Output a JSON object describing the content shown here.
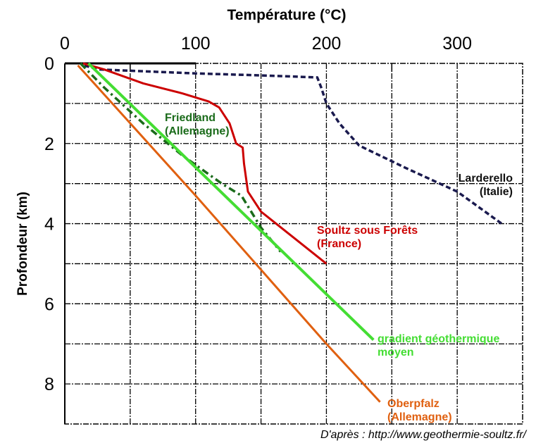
{
  "chart_data": {
    "type": "line",
    "title": "Température (°C)",
    "xlabel": "Température (°C)",
    "ylabel": "Profondeur (km)",
    "xlim": [
      0,
      350
    ],
    "ylim": [
      0,
      9
    ],
    "y_inverted": true,
    "x_axis_position": "top",
    "x_ticks": [
      0,
      100,
      200,
      300
    ],
    "x_tick_labels": [
      "0",
      "100",
      "200",
      "300"
    ],
    "y_ticks": [
      0,
      2,
      4,
      6,
      8
    ],
    "y_tick_labels": [
      "0",
      "2",
      "4",
      "6",
      "8"
    ],
    "x_grid": [
      50,
      100,
      150,
      200,
      250,
      300
    ],
    "y_grid": [
      1,
      2,
      3,
      4,
      5,
      6,
      7,
      8
    ],
    "grid": true,
    "series": [
      {
        "name": "Larderello (Italie)",
        "label_lines": [
          "Larderello",
          "(Italie)"
        ],
        "color": "#1a1a4e",
        "style": "dashed",
        "points": [
          [
            15,
            0.05
          ],
          [
            25,
            0.15
          ],
          [
            100,
            0.25
          ],
          [
            150,
            0.3
          ],
          [
            193,
            0.35
          ],
          [
            196,
            0.6
          ],
          [
            200,
            1.0
          ],
          [
            210,
            1.5
          ],
          [
            225,
            2.05
          ],
          [
            260,
            2.6
          ],
          [
            300,
            3.2
          ],
          [
            334,
            4.0
          ]
        ]
      },
      {
        "name": "Soultz sous Forêts (France)",
        "label_lines": [
          "Soultz sous Forêts",
          "(France)"
        ],
        "color": "#cc0000",
        "style": "solid",
        "points": [
          [
            14,
            0.0
          ],
          [
            30,
            0.15
          ],
          [
            60,
            0.5
          ],
          [
            90,
            0.75
          ],
          [
            110,
            0.95
          ],
          [
            118,
            1.1
          ],
          [
            126,
            1.5
          ],
          [
            131,
            2.0
          ],
          [
            136,
            2.1
          ],
          [
            137,
            2.5
          ],
          [
            140,
            3.2
          ],
          [
            150,
            3.7
          ],
          [
            175,
            4.35
          ],
          [
            200,
            5.0
          ]
        ]
      },
      {
        "name": "Friedland (Allemagne)",
        "label_lines": [
          "Friedland",
          "(Allemagne)"
        ],
        "color": "#1a6b1a",
        "style": "dashdot",
        "points": [
          [
            12,
            0.0
          ],
          [
            30,
            0.6
          ],
          [
            60,
            1.5
          ],
          [
            90,
            2.3
          ],
          [
            120,
            3.0
          ],
          [
            135,
            3.3
          ],
          [
            150,
            4.1
          ],
          [
            165,
            4.7
          ]
        ]
      },
      {
        "name": "gradient géothermique moyen",
        "label_lines": [
          "gradient géothermique",
          "moyen"
        ],
        "color": "#44dd33",
        "style": "solid",
        "points": [
          [
            18,
            0.0
          ],
          [
            236,
            6.9
          ]
        ]
      },
      {
        "name": "Oberpfalz (Allemagne)",
        "label_lines": [
          "Oberpfalz",
          "(Allemagne)"
        ],
        "color": "#e06010",
        "style": "solid",
        "points": [
          [
            10,
            0.05
          ],
          [
            100,
            3.3
          ],
          [
            200,
            7.0
          ],
          [
            241,
            8.45
          ]
        ]
      }
    ],
    "source": "D'après : http://www.geothermie-soultz.fr/"
  }
}
